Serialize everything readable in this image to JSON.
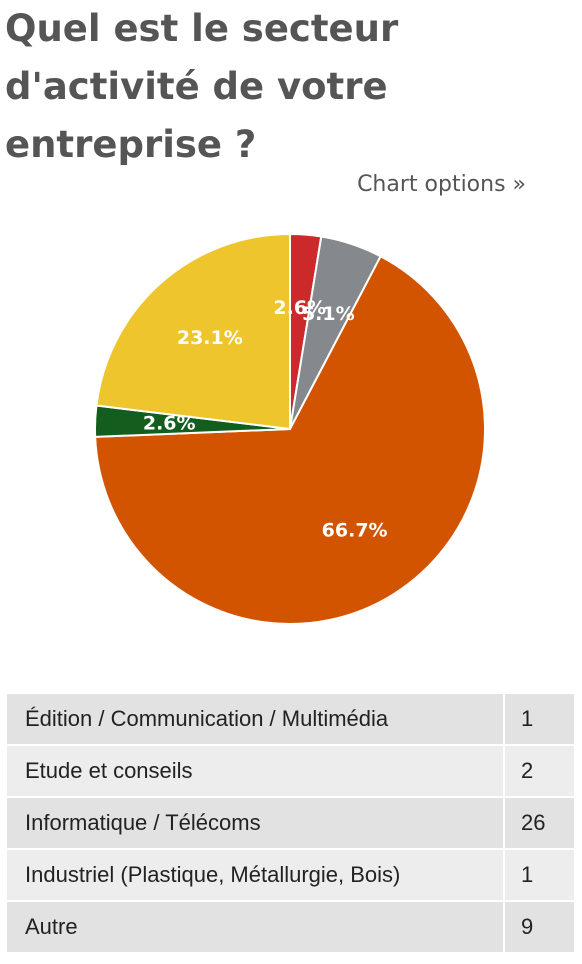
{
  "question": {
    "title": "Quel est le secteur d'activité de votre entreprise ?"
  },
  "chart_options_label": "Chart options »",
  "chart_data": {
    "type": "pie",
    "categories": [
      "Édition / Communication / Multimédia",
      "Etude et conseils",
      "Informatique / Télécoms",
      "Industriel (Plastique, Métallurgie, Bois)",
      "Autre"
    ],
    "values": [
      1,
      2,
      26,
      1,
      9
    ],
    "percent_labels": [
      "2.6%",
      "5.1%",
      "66.7%",
      "2.6%",
      "23.1%"
    ],
    "colors": [
      "#cc2a2a",
      "#85888c",
      "#d35400",
      "#135e1f",
      "#efc52e"
    ],
    "start": "top",
    "direction": "clockwise"
  },
  "table": {
    "rows": [
      {
        "label": "Édition / Communication / Multimédia",
        "count": "1"
      },
      {
        "label": "Etude et conseils",
        "count": "2"
      },
      {
        "label": "Informatique / Télécoms",
        "count": "26"
      },
      {
        "label": "Industriel (Plastique, Métallurgie, Bois)",
        "count": "1"
      },
      {
        "label": "Autre",
        "count": "9"
      }
    ]
  }
}
